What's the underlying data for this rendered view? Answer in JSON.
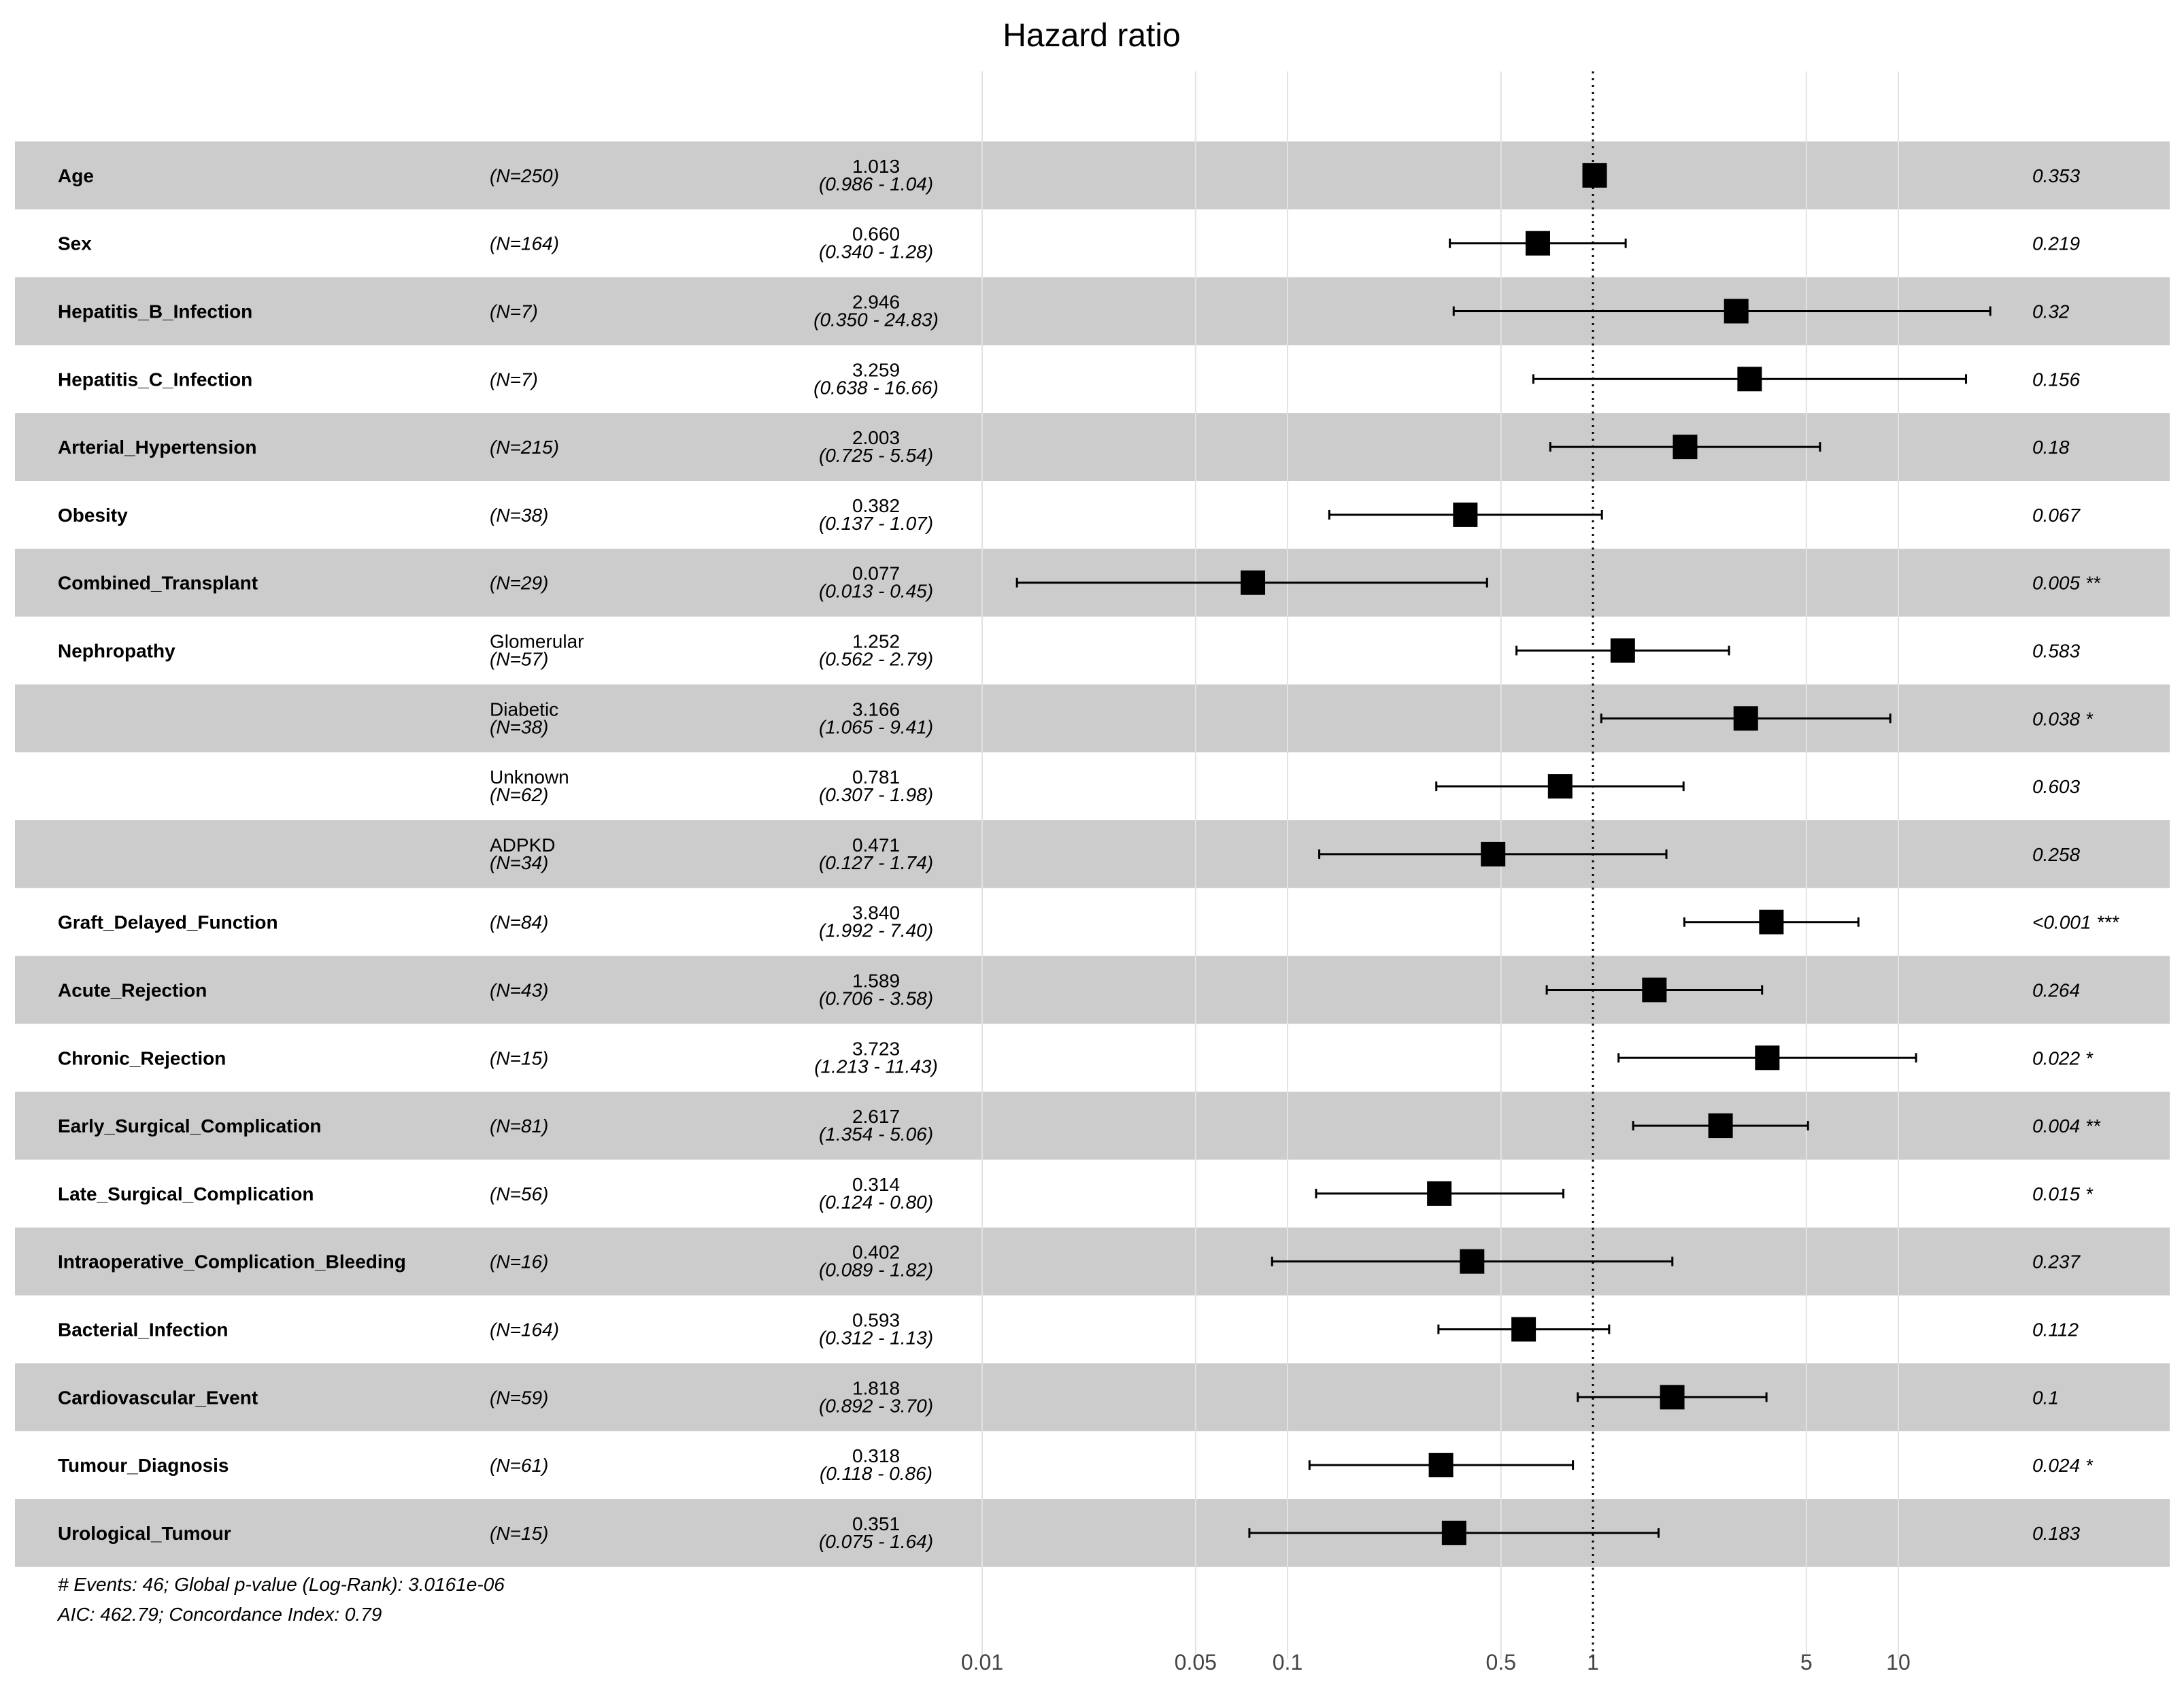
{
  "chart_data": {
    "type": "forest",
    "title": "Hazard ratio",
    "scale": "log",
    "xlim": [
      0.01,
      20
    ],
    "reference_line": 1,
    "x_ticks": [
      {
        "value": 0.01,
        "label": "0.01"
      },
      {
        "value": 0.05,
        "label": "0.05"
      },
      {
        "value": 0.1,
        "label": "0.1"
      },
      {
        "value": 0.5,
        "label": "0.5"
      },
      {
        "value": 1,
        "label": "1"
      },
      {
        "value": 5,
        "label": "5"
      },
      {
        "value": 10,
        "label": "10"
      }
    ],
    "rows": [
      {
        "variable": "Age",
        "level": "",
        "n": "(N=250)",
        "hr": 1.013,
        "hr_text": "1.013",
        "lower": 0.986,
        "upper": 1.04,
        "ci_text": "(0.986 -  1.04)",
        "p_text": "0.353"
      },
      {
        "variable": "Sex",
        "level": "",
        "n": "(N=164)",
        "hr": 0.66,
        "hr_text": "0.660",
        "lower": 0.34,
        "upper": 1.28,
        "ci_text": "(0.340 -  1.28)",
        "p_text": "0.219"
      },
      {
        "variable": "Hepatitis_B_Infection",
        "level": "",
        "n": "(N=7)",
        "hr": 2.946,
        "hr_text": "2.946",
        "lower": 0.35,
        "upper": 24.83,
        "ci_text": "(0.350 - 24.83)",
        "p_text": "0.32"
      },
      {
        "variable": "Hepatitis_C_Infection",
        "level": "",
        "n": "(N=7)",
        "hr": 3.259,
        "hr_text": "3.259",
        "lower": 0.638,
        "upper": 16.66,
        "ci_text": "(0.638 - 16.66)",
        "p_text": "0.156"
      },
      {
        "variable": "Arterial_Hypertension",
        "level": "",
        "n": "(N=215)",
        "hr": 2.003,
        "hr_text": "2.003",
        "lower": 0.725,
        "upper": 5.54,
        "ci_text": "(0.725 -  5.54)",
        "p_text": "0.18"
      },
      {
        "variable": "Obesity",
        "level": "",
        "n": "(N=38)",
        "hr": 0.382,
        "hr_text": "0.382",
        "lower": 0.137,
        "upper": 1.07,
        "ci_text": "(0.137 -  1.07)",
        "p_text": "0.067"
      },
      {
        "variable": "Combined_Transplant",
        "level": "",
        "n": "(N=29)",
        "hr": 0.077,
        "hr_text": "0.077",
        "lower": 0.013,
        "upper": 0.45,
        "ci_text": "(0.013 -  0.45)",
        "p_text": "0.005 **"
      },
      {
        "variable": "Nephropathy",
        "level": "Glomerular",
        "n": "(N=57)",
        "hr": 1.252,
        "hr_text": "1.252",
        "lower": 0.562,
        "upper": 2.79,
        "ci_text": "(0.562 -  2.79)",
        "p_text": "0.583"
      },
      {
        "variable": "",
        "level": "Diabetic",
        "n": "(N=38)",
        "hr": 3.166,
        "hr_text": "3.166",
        "lower": 1.065,
        "upper": 9.41,
        "ci_text": "(1.065 -  9.41)",
        "p_text": "0.038 *"
      },
      {
        "variable": "",
        "level": "Unknown",
        "n": "(N=62)",
        "hr": 0.781,
        "hr_text": "0.781",
        "lower": 0.307,
        "upper": 1.98,
        "ci_text": "(0.307 -  1.98)",
        "p_text": "0.603"
      },
      {
        "variable": "",
        "level": "ADPKD",
        "n": "(N=34)",
        "hr": 0.471,
        "hr_text": "0.471",
        "lower": 0.127,
        "upper": 1.74,
        "ci_text": "(0.127 -  1.74)",
        "p_text": "0.258"
      },
      {
        "variable": "Graft_Delayed_Function",
        "level": "",
        "n": "(N=84)",
        "hr": 3.84,
        "hr_text": "3.840",
        "lower": 1.992,
        "upper": 7.4,
        "ci_text": "(1.992 -  7.40)",
        "p_text": "<0.001 ***"
      },
      {
        "variable": "Acute_Rejection",
        "level": "",
        "n": "(N=43)",
        "hr": 1.589,
        "hr_text": "1.589",
        "lower": 0.706,
        "upper": 3.58,
        "ci_text": "(0.706 -  3.58)",
        "p_text": "0.264"
      },
      {
        "variable": "Chronic_Rejection",
        "level": "",
        "n": "(N=15)",
        "hr": 3.723,
        "hr_text": "3.723",
        "lower": 1.213,
        "upper": 11.43,
        "ci_text": "(1.213 - 11.43)",
        "p_text": "0.022 *"
      },
      {
        "variable": "Early_Surgical_Complication",
        "level": "",
        "n": "(N=81)",
        "hr": 2.617,
        "hr_text": "2.617",
        "lower": 1.354,
        "upper": 5.06,
        "ci_text": "(1.354 -  5.06)",
        "p_text": "0.004 **"
      },
      {
        "variable": "Late_Surgical_Complication",
        "level": "",
        "n": "(N=56)",
        "hr": 0.314,
        "hr_text": "0.314",
        "lower": 0.124,
        "upper": 0.8,
        "ci_text": "(0.124 -  0.80)",
        "p_text": "0.015 *"
      },
      {
        "variable": "Intraoperative_Complication_Bleeding",
        "level": "",
        "n": "(N=16)",
        "hr": 0.402,
        "hr_text": "0.402",
        "lower": 0.089,
        "upper": 1.82,
        "ci_text": "(0.089 -  1.82)",
        "p_text": "0.237"
      },
      {
        "variable": "Bacterial_Infection",
        "level": "",
        "n": "(N=164)",
        "hr": 0.593,
        "hr_text": "0.593",
        "lower": 0.312,
        "upper": 1.13,
        "ci_text": "(0.312 -  1.13)",
        "p_text": "0.112"
      },
      {
        "variable": "Cardiovascular_Event",
        "level": "",
        "n": "(N=59)",
        "hr": 1.818,
        "hr_text": "1.818",
        "lower": 0.892,
        "upper": 3.7,
        "ci_text": "(0.892 -  3.70)",
        "p_text": "0.1"
      },
      {
        "variable": "Tumour_Diagnosis",
        "level": "",
        "n": "(N=61)",
        "hr": 0.318,
        "hr_text": "0.318",
        "lower": 0.118,
        "upper": 0.86,
        "ci_text": "(0.118 -  0.86)",
        "p_text": "0.024 *"
      },
      {
        "variable": "Urological_Tumour",
        "level": "",
        "n": "(N=15)",
        "hr": 0.351,
        "hr_text": "0.351",
        "lower": 0.075,
        "upper": 1.64,
        "ci_text": "(0.075 -  1.64)",
        "p_text": "0.183"
      }
    ],
    "footnote": [
      "# Events: 46; Global p-value (Log-Rank): 3.0161e-06",
      "AIC: 462.79; Concordance Index: 0.79"
    ]
  },
  "colors": {
    "band": "#cccccc",
    "marker": "#000000",
    "grid": "#e2e2e2",
    "text": "#000000"
  }
}
